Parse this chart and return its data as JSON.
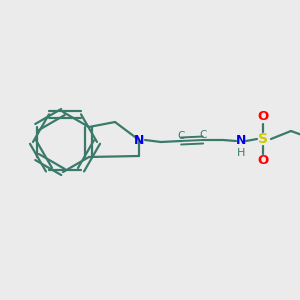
{
  "bg_color": "#ebebeb",
  "bond_color": "#3a7a6a",
  "N_color": "#0000ee",
  "S_color": "#cccc00",
  "O_color": "#ff0000",
  "H_color": "#3a7a6a",
  "line_width": 1.6,
  "fig_size": [
    3.0,
    3.0
  ],
  "dpi": 100,
  "xlim": [
    0,
    300
  ],
  "ylim": [
    0,
    300
  ]
}
